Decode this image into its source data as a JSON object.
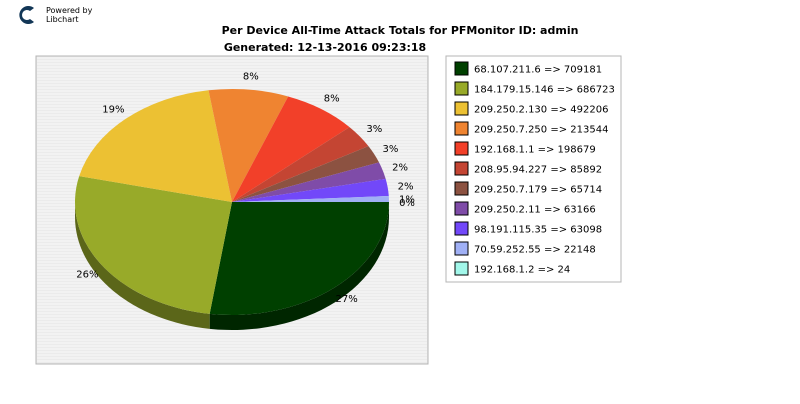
{
  "branding": {
    "powered_by": "Powered by",
    "library": "Libchart"
  },
  "chart_data": {
    "type": "pie",
    "title": "Per Device All-Time Attack Totals for PFMonitor ID: admin",
    "subtitle": "Generated: 12-13-2016 09:23:18",
    "slices": [
      {
        "label": "68.107.211.6",
        "value": 709181,
        "percent_label": "27%",
        "color": "#004000"
      },
      {
        "label": "184.179.15.146",
        "value": 686723,
        "percent_label": "26%",
        "color": "#98aa29"
      },
      {
        "label": "209.250.2.130",
        "value": 492206,
        "percent_label": "19%",
        "color": "#ecc133"
      },
      {
        "label": "209.250.7.250",
        "value": 213544,
        "percent_label": "8%",
        "color": "#ef8431"
      },
      {
        "label": "192.168.1.1",
        "value": 198679,
        "percent_label": "8%",
        "color": "#f24029"
      },
      {
        "label": "208.95.94.227",
        "value": 85892,
        "percent_label": "3%",
        "color": "#c44533"
      },
      {
        "label": "209.250.7.179",
        "value": 65714,
        "percent_label": "3%",
        "color": "#8c5241"
      },
      {
        "label": "209.250.2.11",
        "value": 63166,
        "percent_label": "2%",
        "color": "#7f4ca8"
      },
      {
        "label": "98.191.115.35",
        "value": 63098,
        "percent_label": "2%",
        "color": "#7248f9"
      },
      {
        "label": "70.59.252.55",
        "value": 22148,
        "percent_label": "1%",
        "color": "#a0b0f5"
      },
      {
        "label": "192.168.1.2",
        "value": 24,
        "percent_label": "0%",
        "color": "#a2f7ea"
      }
    ],
    "legend_separator": " => ",
    "legend_position": "right"
  }
}
